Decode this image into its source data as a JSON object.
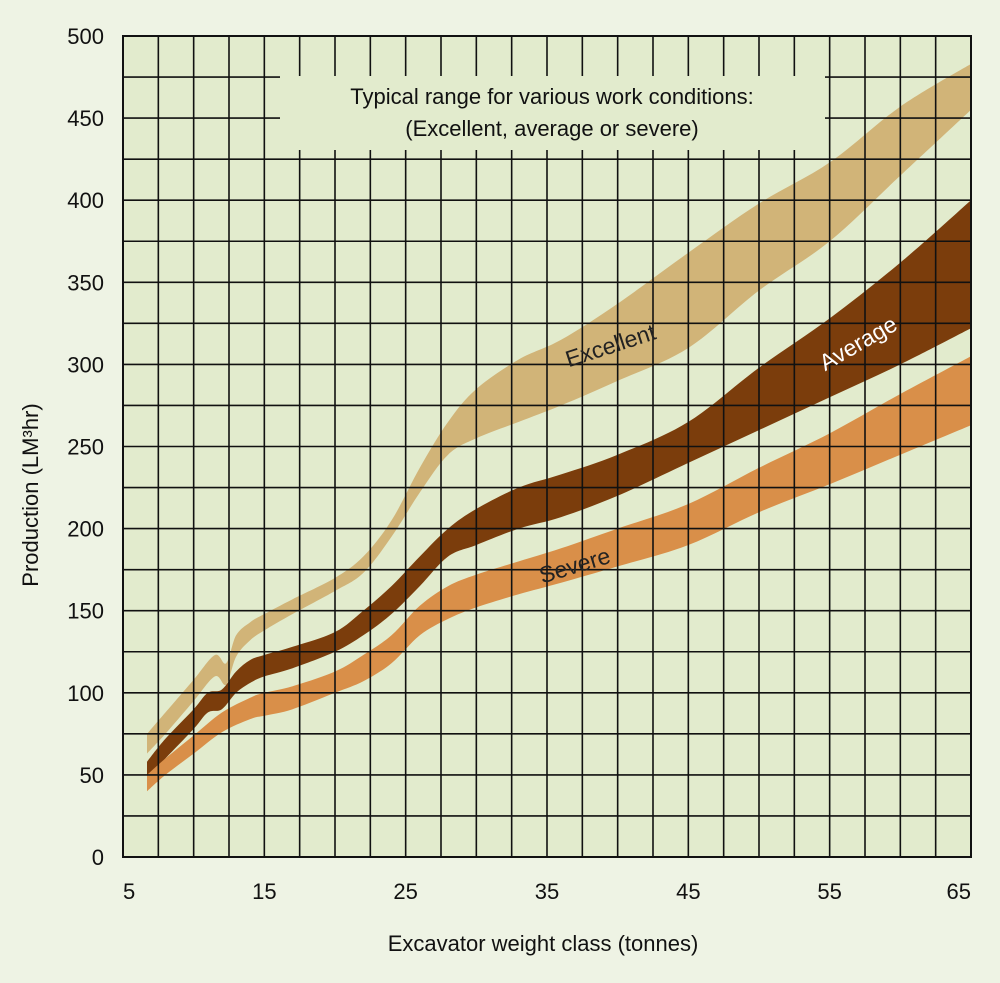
{
  "chart_data": {
    "type": "area",
    "title": "",
    "xlabel": "Excavator weight class (tonnes)",
    "ylabel": "Production (LM³hr)",
    "xlim": [
      5,
      65
    ],
    "ylim": [
      0,
      500
    ],
    "x_ticks": [
      5,
      15,
      25,
      35,
      45,
      55,
      65
    ],
    "y_ticks": [
      0,
      50,
      100,
      150,
      200,
      250,
      300,
      350,
      400,
      450,
      500
    ],
    "grid": true,
    "legend": "none",
    "annotation": {
      "line1": "Typical range for various work conditions:",
      "line2": "(Excellent, average or severe)"
    },
    "colors": {
      "plot_background": "#e2ebcd",
      "page_background": "#eef3e4",
      "grid": "#111111",
      "excellent": "#d1b478",
      "average": "#7b3d0c",
      "severe": "#d98f49"
    },
    "series": [
      {
        "name": "Excellent",
        "color": "#d1b478",
        "label_color": "#222222",
        "x": [
          6.7,
          8,
          10,
          11.5,
          12.3,
          13,
          14,
          15,
          17,
          20,
          22,
          24,
          26,
          28,
          30,
          33,
          36,
          40,
          45,
          50,
          55,
          60,
          65
        ],
        "upper": [
          75,
          88,
          108,
          123,
          118,
          135,
          143,
          148,
          157,
          170,
          183,
          205,
          237,
          265,
          285,
          303,
          315,
          337,
          368,
          398,
          423,
          457,
          483
        ],
        "lower": [
          63,
          75,
          95,
          110,
          105,
          122,
          132,
          138,
          148,
          162,
          173,
          195,
          222,
          245,
          255,
          265,
          275,
          290,
          310,
          345,
          375,
          415,
          455
        ]
      },
      {
        "name": "Average",
        "color": "#7b3d0c",
        "label_color": "#ffffff",
        "x": [
          6.7,
          8,
          10,
          11,
          12,
          13,
          14,
          15,
          17,
          20,
          22,
          24,
          26,
          28,
          30,
          33,
          36,
          40,
          45,
          50,
          55,
          60,
          65
        ],
        "upper": [
          58,
          72,
          90,
          100,
          102,
          113,
          120,
          123,
          128,
          137,
          150,
          165,
          183,
          200,
          212,
          225,
          233,
          245,
          265,
          298,
          328,
          362,
          400
        ],
        "lower": [
          48,
          60,
          78,
          88,
          90,
          100,
          106,
          110,
          115,
          125,
          135,
          148,
          165,
          183,
          190,
          200,
          207,
          220,
          240,
          260,
          280,
          300,
          322
        ]
      },
      {
        "name": "Severe",
        "color": "#d98f49",
        "label_color": "#222222",
        "x": [
          6.7,
          8,
          10,
          12,
          14,
          15,
          17,
          20,
          22,
          24,
          26,
          28,
          30,
          33,
          36,
          40,
          45,
          50,
          55,
          60,
          65
        ],
        "upper": [
          50,
          60,
          74,
          88,
          97,
          100,
          104,
          113,
          123,
          135,
          153,
          165,
          172,
          180,
          188,
          200,
          215,
          237,
          258,
          282,
          305
        ],
        "lower": [
          40,
          50,
          63,
          76,
          84,
          86,
          90,
          100,
          107,
          118,
          135,
          145,
          152,
          160,
          167,
          177,
          190,
          210,
          227,
          245,
          263
        ]
      }
    ]
  }
}
